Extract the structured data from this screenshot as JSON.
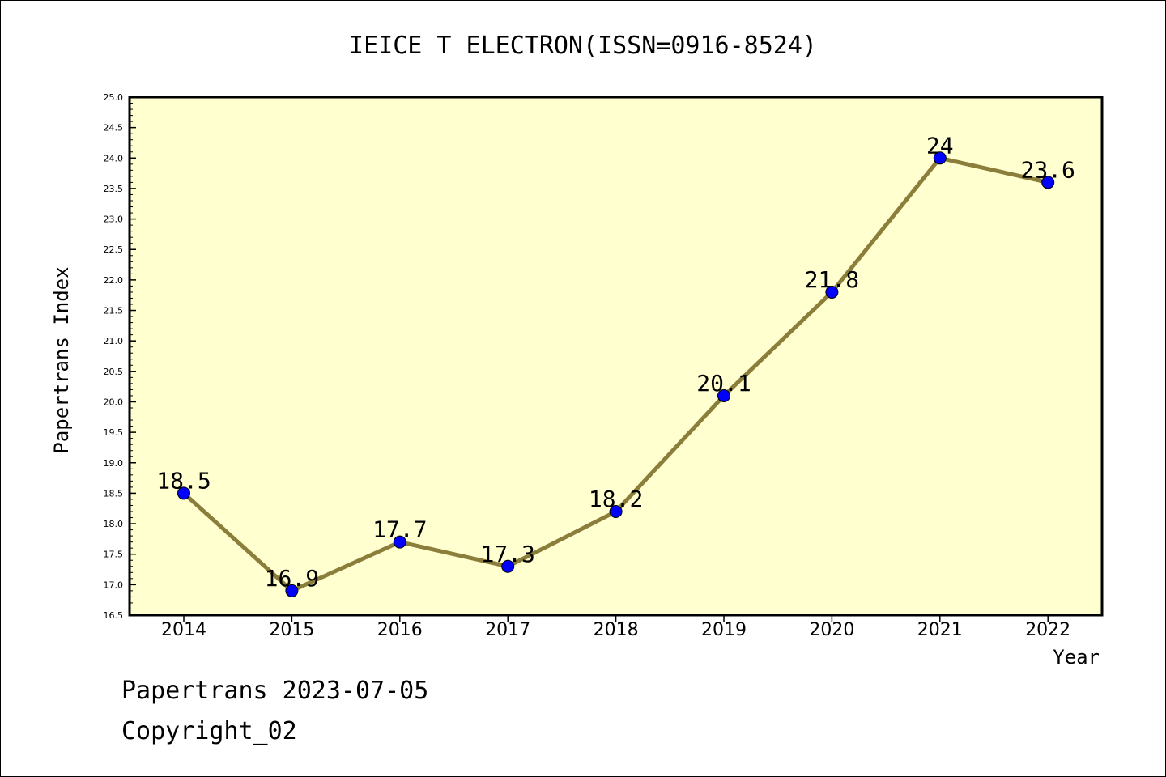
{
  "chart_data": {
    "type": "line",
    "title": "IEICE T ELECTRON(ISSN=0916-8524)",
    "xlabel": "Year",
    "ylabel": "Papertrans Index",
    "categories": [
      "2014",
      "2015",
      "2016",
      "2017",
      "2018",
      "2019",
      "2020",
      "2021",
      "2022"
    ],
    "values": [
      18.5,
      16.9,
      17.7,
      17.3,
      18.2,
      20.1,
      21.8,
      24,
      23.6
    ],
    "data_labels": [
      "18.5",
      "16.9",
      "17.7",
      "17.3",
      "18.2",
      "20.1",
      "21.8",
      "24",
      "23.6"
    ],
    "ylim": [
      16.5,
      25.0
    ],
    "yticks": [
      "16.5",
      "17.0",
      "17.5",
      "18.0",
      "18.5",
      "19.0",
      "19.5",
      "20.0",
      "20.5",
      "21.0",
      "21.5",
      "22.0",
      "22.5",
      "23.0",
      "23.5",
      "24.0",
      "24.5",
      "25.0"
    ],
    "grid": false,
    "colors": {
      "plot_background": "#ffffd0",
      "line": "#8b7d3a",
      "marker": "#0000ff"
    }
  },
  "footer": {
    "line1": "Papertrans 2023-07-05",
    "line2": "Copyright_02"
  }
}
